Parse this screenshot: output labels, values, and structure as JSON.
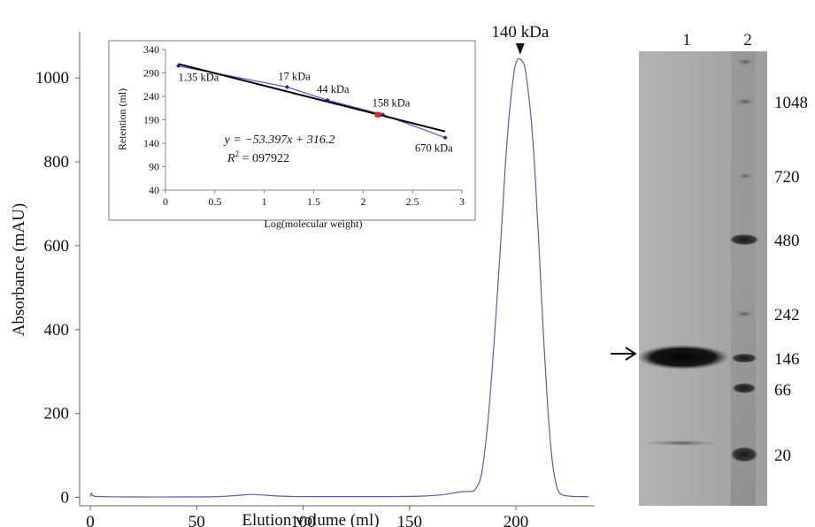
{
  "colors": {
    "trace": "#5b5bb0",
    "fit_line": "#000000",
    "data_line": "#4a55c8",
    "marker": "#22238a",
    "sample_marker": "#cc2a2a",
    "axis": "#666666"
  },
  "chart_data": [
    {
      "type": "line",
      "title": "",
      "xlabel": "Elution volume (ml)",
      "ylabel": "Absorbance (mAU)",
      "xlim": [
        -5,
        237
      ],
      "ylim": [
        -20,
        1110
      ],
      "x_ticks": [
        "0",
        "50",
        "100",
        "150",
        "200"
      ],
      "y_ticks": [
        "0",
        "200",
        "400",
        "600",
        "800",
        "1000"
      ],
      "peak_annotation": {
        "label": "140 kDa",
        "x": 202,
        "y": 1045
      },
      "series": [
        {
          "x": [
            0,
            0.5,
            1,
            2,
            5,
            20,
            40,
            60,
            70,
            75,
            80,
            90,
            100,
            120,
            140,
            155,
            165,
            170,
            175,
            178,
            181,
            184,
            187,
            190,
            193,
            195,
            197,
            199,
            200,
            201,
            202,
            203,
            204,
            205,
            207,
            209,
            211,
            213,
            215,
            217,
            219,
            221,
            225,
            230,
            234
          ],
          "y": [
            2,
            10,
            5,
            3,
            2,
            1,
            1,
            2,
            5,
            7,
            6,
            3,
            2,
            2,
            2,
            3,
            6,
            10,
            14,
            14,
            20,
            60,
            190,
            390,
            620,
            790,
            920,
            1010,
            1035,
            1045,
            1045,
            1040,
            1030,
            1000,
            910,
            770,
            580,
            380,
            210,
            90,
            30,
            8,
            3,
            2,
            2
          ]
        }
      ]
    },
    {
      "type": "scatter",
      "title": "",
      "xlabel": "Log(molecular weight)",
      "ylabel": "Retention (ml)",
      "xlim": [
        0,
        3
      ],
      "ylim": [
        40,
        340
      ],
      "x_ticks": [
        "0",
        "0.5",
        "1",
        "1.5",
        "2",
        "2.5",
        "3"
      ],
      "y_ticks": [
        "40",
        "90",
        "140",
        "190",
        "240",
        "290",
        "340"
      ],
      "points": [
        {
          "x": 0.13,
          "y": 305,
          "label": "1.35 kDa"
        },
        {
          "x": 1.23,
          "y": 260,
          "label": "17 kDa"
        },
        {
          "x": 1.64,
          "y": 232,
          "label": "44 kDa"
        },
        {
          "x": 2.2,
          "y": 201,
          "label": "158 kDa"
        },
        {
          "x": 2.83,
          "y": 152,
          "label": "670 kDa"
        }
      ],
      "sample_point": {
        "x": 2.15,
        "y": 201
      },
      "fit": {
        "slope": -53.397,
        "intercept": 316.2,
        "x_range": [
          0.13,
          2.83
        ]
      },
      "equation": "y = −53.397x + 316.2",
      "r2_label": "R",
      "r2_value": " = 097922"
    }
  ],
  "gel": {
    "lanes": [
      "1",
      "2"
    ],
    "markers": [
      {
        "label": "1048",
        "y": 115
      },
      {
        "label": "720",
        "y": 199
      },
      {
        "label": "480",
        "y": 271
      },
      {
        "label": "242",
        "y": 355
      },
      {
        "label": "146",
        "y": 405
      },
      {
        "label": "66",
        "y": 440
      },
      {
        "label": "20",
        "y": 514
      }
    ]
  }
}
